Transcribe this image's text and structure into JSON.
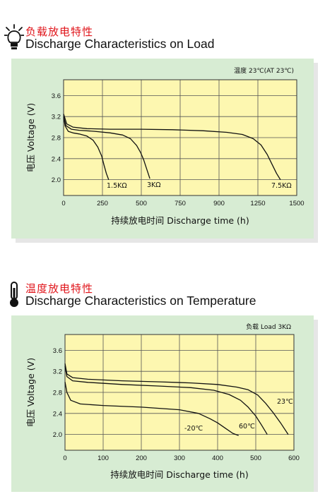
{
  "load_section": {
    "title_cn": "负载放电特性",
    "title_en": "Discharge Characteristics on Load",
    "icon": "lightbulb-icon"
  },
  "temp_section": {
    "title_cn": "温度放电特性",
    "title_en": "Discharge Characteristics on Temperature",
    "icon": "thermometer-icon"
  },
  "colors": {
    "panel_bg": "#d7ecd3",
    "plot_bg": "#fdf7b0",
    "grid": "#555555",
    "curve": "#111111",
    "title_red": "#e0151b"
  },
  "chart_data": [
    {
      "type": "line",
      "title": "Discharge Characteristics on Load",
      "condition": "温度 23℃(AT 23℃)",
      "ylabel": "电压  Voltage (V)",
      "xlabel": "持续放电时间   Discharge time (h)",
      "xlim": [
        0,
        1500
      ],
      "ylim": [
        1.7,
        3.9
      ],
      "xticks": [
        0,
        250,
        500,
        750,
        900,
        1250,
        1500
      ],
      "yticks": [
        2.0,
        2.4,
        2.8,
        3.2,
        3.6
      ],
      "grid": true,
      "series": [
        {
          "name": "1.5KΩ",
          "x": [
            0,
            10,
            30,
            60,
            100,
            150,
            190,
            220,
            245,
            260,
            275,
            290
          ],
          "y": [
            3.2,
            3.02,
            2.92,
            2.89,
            2.87,
            2.83,
            2.75,
            2.62,
            2.45,
            2.28,
            2.12,
            2.0
          ]
        },
        {
          "name": "3KΩ",
          "x": [
            0,
            15,
            50,
            100,
            200,
            300,
            380,
            430,
            470,
            495,
            515,
            535,
            555
          ],
          "y": [
            3.2,
            3.03,
            2.96,
            2.94,
            2.92,
            2.89,
            2.85,
            2.78,
            2.65,
            2.52,
            2.38,
            2.2,
            2.02
          ]
        },
        {
          "name": "7.5KΩ",
          "x": [
            0,
            20,
            60,
            150,
            300,
            500,
            700,
            900,
            1050,
            1150,
            1220,
            1270,
            1310,
            1340,
            1370,
            1395
          ],
          "y": [
            3.25,
            3.06,
            3.0,
            2.97,
            2.96,
            2.96,
            2.95,
            2.93,
            2.9,
            2.86,
            2.78,
            2.66,
            2.48,
            2.3,
            2.12,
            2.0
          ]
        }
      ]
    },
    {
      "type": "line",
      "title": "Discharge Characteristics on Temperature",
      "condition": "负载   Load 3KΩ",
      "ylabel": "电压  Voltage (V)",
      "xlabel": "持续放电时间   Discharge time (h)",
      "xlim": [
        0,
        600
      ],
      "ylim": [
        1.7,
        3.9
      ],
      "xticks": [
        0,
        100,
        200,
        300,
        400,
        500,
        600
      ],
      "yticks": [
        2.0,
        2.4,
        2.8,
        3.2,
        3.6
      ],
      "grid": true,
      "series": [
        {
          "name": "23℃",
          "x": [
            0,
            5,
            20,
            60,
            150,
            250,
            330,
            400,
            450,
            480,
            505,
            525,
            545,
            565,
            585
          ],
          "y": [
            3.35,
            3.15,
            3.08,
            3.05,
            3.02,
            3.0,
            2.98,
            2.95,
            2.9,
            2.85,
            2.75,
            2.6,
            2.42,
            2.22,
            2.0
          ]
        },
        {
          "name": "60℃",
          "x": [
            0,
            5,
            20,
            60,
            150,
            250,
            330,
            390,
            430,
            460,
            480,
            500,
            515,
            530
          ],
          "y": [
            3.3,
            3.1,
            3.02,
            2.99,
            2.95,
            2.92,
            2.89,
            2.84,
            2.76,
            2.65,
            2.52,
            2.35,
            2.18,
            2.0
          ]
        },
        {
          "name": "-20℃",
          "x": [
            0,
            5,
            15,
            40,
            100,
            200,
            300,
            350,
            380,
            400,
            420,
            440,
            455
          ],
          "y": [
            3.0,
            2.8,
            2.65,
            2.58,
            2.55,
            2.52,
            2.47,
            2.4,
            2.3,
            2.22,
            2.12,
            2.02,
            1.98
          ]
        }
      ]
    }
  ]
}
